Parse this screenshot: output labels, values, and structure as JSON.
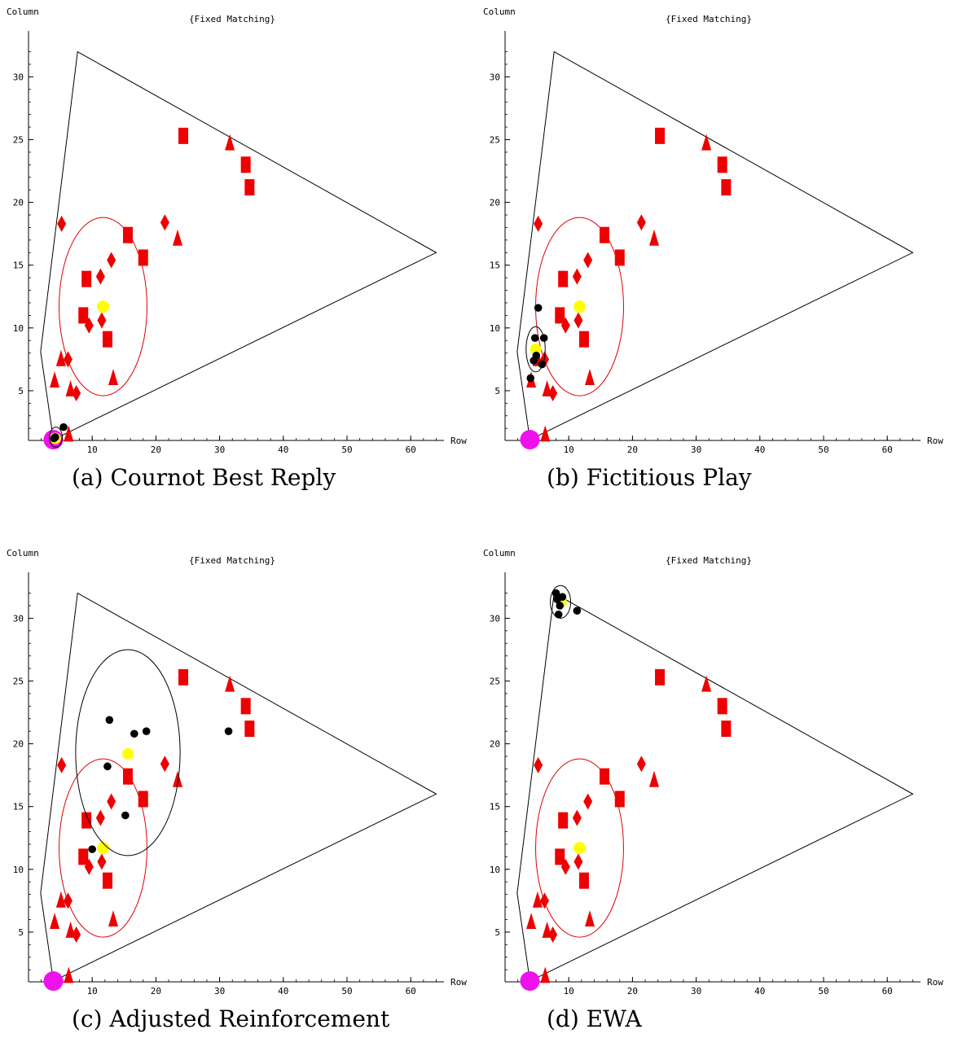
{
  "chart_data": [
    {
      "type": "scatter",
      "title": "{Fixed Matching}",
      "xlabel": "Row",
      "ylabel": "Column",
      "caption": "(a) Cournot Best Reply",
      "xlim": [
        0,
        65
      ],
      "ylim": [
        0,
        32.5
      ],
      "xticks": [
        10,
        20,
        30,
        40,
        50,
        60
      ],
      "yticks": [
        5,
        10,
        15,
        20,
        25,
        30
      ],
      "simulated": {
        "points": [
          [
            4,
            1.2
          ],
          [
            5.5,
            2.1
          ],
          [
            4.2,
            1.3
          ]
        ],
        "mean": [
          4.2,
          1.2
        ],
        "ellipse": {
          "center": [
            4.3,
            1.3
          ],
          "rx": 1.0,
          "ry": 0.8
        }
      }
    },
    {
      "type": "scatter",
      "title": "{Fixed Matching}",
      "xlabel": "Row",
      "ylabel": "Column",
      "caption": "(b) Fictitious Play",
      "xlim": [
        0,
        65
      ],
      "ylim": [
        0,
        32.5
      ],
      "xticks": [
        10,
        20,
        30,
        40,
        50,
        60
      ],
      "yticks": [
        5,
        10,
        15,
        20,
        25,
        30
      ],
      "simulated": {
        "points": [
          [
            5.2,
            11.6
          ],
          [
            4.7,
            9.2
          ],
          [
            6.1,
            9.2
          ],
          [
            4.9,
            7.8
          ],
          [
            4.5,
            7.4
          ],
          [
            5.8,
            7.1
          ],
          [
            4.0,
            6.0
          ]
        ],
        "mean": [
          4.8,
          8.3
        ],
        "ellipse": {
          "center": [
            4.8,
            8.3
          ],
          "rx": 1.5,
          "ry": 1.8
        }
      }
    },
    {
      "type": "scatter",
      "title": "{Fixed Matching}",
      "xlabel": "Row",
      "ylabel": "Column",
      "caption": "(c) Adjusted Reinforcement",
      "xlim": [
        0,
        65
      ],
      "ylim": [
        0,
        32.5
      ],
      "xticks": [
        10,
        20,
        30,
        40,
        50,
        60
      ],
      "yticks": [
        5,
        10,
        15,
        20,
        25,
        30
      ],
      "simulated": {
        "points": [
          [
            12.7,
            21.9
          ],
          [
            16.6,
            20.8
          ],
          [
            18.5,
            21.0
          ],
          [
            31.4,
            21.0
          ],
          [
            12.4,
            18.2
          ],
          [
            15.2,
            14.3
          ],
          [
            10.0,
            11.6
          ]
        ],
        "mean": [
          15.6,
          19.2
        ],
        "ellipse": {
          "center": [
            15.6,
            19.3
          ],
          "rx": 8.2,
          "ry": 8.2
        }
      }
    },
    {
      "type": "scatter",
      "title": "{Fixed Matching}",
      "xlabel": "Row",
      "ylabel": "Column",
      "caption": "(d) EWA",
      "xlim": [
        0,
        65
      ],
      "ylim": [
        0,
        32.5
      ],
      "xticks": [
        10,
        20,
        30,
        40,
        50,
        60
      ],
      "yticks": [
        5,
        10,
        15,
        20,
        25,
        30
      ],
      "simulated": {
        "points": [
          [
            8.0,
            32.0
          ],
          [
            8.2,
            31.5
          ],
          [
            9.0,
            31.7
          ],
          [
            8.6,
            31.0
          ],
          [
            8.4,
            30.3
          ],
          [
            11.3,
            30.6
          ]
        ],
        "mean": [
          8.8,
          31.3
        ],
        "ellipse": {
          "center": [
            8.7,
            31.3
          ],
          "rx": 1.6,
          "ry": 1.3
        }
      }
    }
  ],
  "shared": {
    "feasible_region": [
      [
        3.9,
        1.1
      ],
      [
        64,
        16
      ],
      [
        7.7,
        32
      ],
      [
        1.9,
        8.1
      ],
      [
        3.9,
        1.1
      ]
    ],
    "equilibrium_point": [
      3.9,
      1.1
    ],
    "experimental_mean": [
      11.7,
      11.7
    ],
    "experimental_ellipse": {
      "center": [
        11.7,
        11.7
      ],
      "rx": 6.9,
      "ry": 7.1
    },
    "experimental_rects": [
      [
        24.3,
        25.3
      ],
      [
        34.1,
        23.0
      ],
      [
        34.7,
        21.2
      ],
      [
        15.6,
        17.4
      ],
      [
        18.0,
        15.6
      ],
      [
        9.1,
        13.9
      ],
      [
        8.6,
        11.0
      ],
      [
        12.4,
        9.1
      ]
    ],
    "experimental_triangles": [
      [
        31.6,
        24.8
      ],
      [
        23.4,
        17.2
      ],
      [
        5.1,
        7.6
      ],
      [
        4.1,
        5.9
      ],
      [
        6.6,
        5.2
      ],
      [
        13.3,
        6.1
      ],
      [
        6.3,
        1.6
      ]
    ],
    "experimental_diamonds": [
      [
        5.2,
        18.3
      ],
      [
        21.4,
        18.4
      ],
      [
        13.0,
        15.4
      ],
      [
        11.3,
        14.1
      ],
      [
        9.5,
        10.2
      ],
      [
        11.5,
        10.6
      ],
      [
        6.2,
        7.5
      ],
      [
        7.5,
        4.8
      ]
    ],
    "colors": {
      "experimental": "#ee0000",
      "simulated": "#000000",
      "mean": "#ffff00",
      "equilibrium": "#ee11ee",
      "region": "#000000",
      "experimental_ellipse": "#dd0000"
    }
  }
}
